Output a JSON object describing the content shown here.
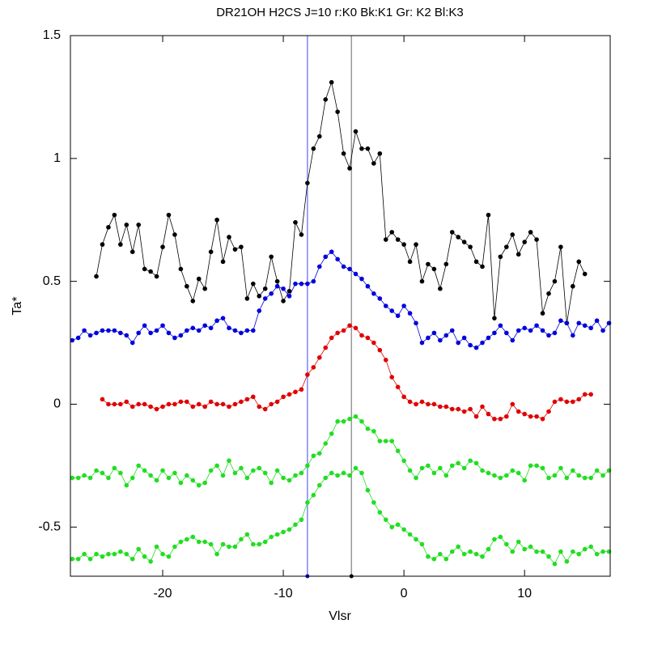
{
  "chart_data": {
    "type": "line",
    "title": "DR21OH H2CS J=10 r:K0 Bk:K1 Gr: K2 Bl:K3",
    "xlabel": "Vlsr",
    "ylabel": "Ta*",
    "xlim": [
      -27.65,
      17.1
    ],
    "ylim": [
      -0.7,
      1.5
    ],
    "xticks": [
      -20,
      -10,
      0,
      10
    ],
    "yticks": [
      -0.5,
      0,
      0.5,
      1,
      1.5
    ],
    "vlines": [
      {
        "x": -8,
        "color": "#8080ff"
      },
      {
        "x": -4.35,
        "color": "#999999"
      }
    ],
    "x": [
      -27.5,
      -27,
      -26.5,
      -26,
      -25.5,
      -25,
      -24.5,
      -24,
      -23.5,
      -23,
      -22.5,
      -22,
      -21.5,
      -21,
      -20.5,
      -20,
      -19.5,
      -19,
      -18.5,
      -18,
      -17.5,
      -17,
      -16.5,
      -16,
      -15.5,
      -15,
      -14.5,
      -14,
      -13.5,
      -13,
      -12.5,
      -12,
      -11.5,
      -11,
      -10.5,
      -10,
      -9.5,
      -9,
      -8.5,
      -8,
      -7.5,
      -7,
      -6.5,
      -6,
      -5.5,
      -5,
      -4.5,
      -4,
      -3.5,
      -3,
      -2.5,
      -2,
      -1.5,
      -1,
      -0.5,
      0,
      0.5,
      1,
      1.5,
      2,
      2.5,
      3,
      3.5,
      4,
      4.5,
      5,
      5.5,
      6,
      6.5,
      7,
      7.5,
      8,
      8.5,
      9,
      9.5,
      10,
      10.5,
      11,
      11.5,
      12,
      12.5,
      13,
      13.5,
      14,
      14.5,
      15,
      15.5,
      16,
      16.5,
      17
    ],
    "series": [
      {
        "color": "#000000",
        "values": [
          null,
          null,
          null,
          null,
          0.52,
          0.65,
          0.72,
          0.77,
          0.65,
          0.73,
          0.62,
          0.73,
          0.55,
          0.54,
          0.52,
          0.64,
          0.77,
          0.69,
          0.55,
          0.48,
          0.42,
          0.51,
          0.47,
          0.62,
          0.75,
          0.58,
          0.68,
          0.63,
          0.64,
          0.43,
          0.49,
          0.44,
          0.47,
          0.6,
          0.5,
          0.42,
          0.46,
          0.74,
          0.69,
          0.9,
          1.04,
          1.09,
          1.24,
          1.31,
          1.19,
          1.02,
          0.96,
          1.11,
          1.04,
          1.04,
          0.98,
          1.02,
          0.67,
          0.7,
          0.67,
          0.65,
          0.58,
          0.65,
          0.5,
          0.57,
          0.55,
          0.47,
          0.57,
          0.7,
          0.68,
          0.66,
          0.64,
          0.58,
          0.56,
          0.77,
          0.35,
          0.6,
          0.64,
          0.69,
          0.61,
          0.66,
          0.7,
          0.67,
          0.37,
          0.45,
          0.5,
          0.64,
          0.33,
          0.48,
          0.58,
          0.53,
          null,
          null,
          null,
          null
        ]
      },
      {
        "color": "#0000dd",
        "values": [
          0.26,
          0.27,
          0.3,
          0.28,
          0.29,
          0.3,
          0.3,
          0.3,
          0.29,
          0.28,
          0.25,
          0.29,
          0.32,
          0.29,
          0.3,
          0.32,
          0.29,
          0.27,
          0.28,
          0.3,
          0.31,
          0.3,
          0.32,
          0.31,
          0.34,
          0.35,
          0.31,
          0.3,
          0.29,
          0.3,
          0.3,
          0.38,
          0.43,
          0.45,
          0.48,
          0.47,
          0.44,
          0.49,
          0.49,
          0.49,
          0.5,
          0.56,
          0.6,
          0.62,
          0.59,
          0.56,
          0.55,
          0.53,
          0.51,
          0.48,
          0.45,
          0.43,
          0.4,
          0.38,
          0.36,
          0.4,
          0.37,
          0.33,
          0.25,
          0.27,
          0.29,
          0.26,
          0.28,
          0.3,
          0.25,
          0.27,
          0.24,
          0.23,
          0.25,
          0.27,
          0.29,
          0.32,
          0.29,
          0.26,
          0.3,
          0.31,
          0.3,
          0.32,
          0.3,
          0.28,
          0.29,
          0.34,
          0.33,
          0.28,
          0.33,
          0.32,
          0.31,
          0.34,
          0.3,
          0.33
        ]
      },
      {
        "color": "#e00000",
        "values": [
          null,
          null,
          null,
          null,
          null,
          0.02,
          0.0,
          0.0,
          0.0,
          0.01,
          -0.01,
          0.0,
          0.0,
          -0.01,
          -0.02,
          -0.01,
          0.0,
          0.0,
          0.01,
          0.01,
          -0.01,
          0.0,
          -0.01,
          0.01,
          0.0,
          0.0,
          -0.01,
          0.0,
          0.01,
          0.02,
          0.03,
          -0.01,
          -0.02,
          0.0,
          0.01,
          0.03,
          0.04,
          0.05,
          0.06,
          0.12,
          0.15,
          0.19,
          0.23,
          0.27,
          0.29,
          0.3,
          0.32,
          0.31,
          0.28,
          0.27,
          0.25,
          0.22,
          0.18,
          0.11,
          0.07,
          0.03,
          0.01,
          0.0,
          0.01,
          0.0,
          0.0,
          -0.01,
          -0.01,
          -0.02,
          -0.02,
          -0.03,
          -0.02,
          -0.05,
          -0.01,
          -0.04,
          -0.06,
          -0.06,
          -0.05,
          0.0,
          -0.03,
          -0.04,
          -0.05,
          -0.05,
          -0.06,
          -0.03,
          0.01,
          0.02,
          0.01,
          0.01,
          0.02,
          0.04,
          0.04,
          null,
          null,
          null
        ]
      },
      {
        "color": "#22dd22",
        "values": [
          -0.3,
          -0.3,
          -0.29,
          -0.3,
          -0.27,
          -0.28,
          -0.3,
          -0.26,
          -0.28,
          -0.33,
          -0.3,
          -0.25,
          -0.27,
          -0.29,
          -0.31,
          -0.27,
          -0.3,
          -0.28,
          -0.32,
          -0.29,
          -0.31,
          -0.33,
          -0.32,
          -0.27,
          -0.25,
          -0.29,
          -0.23,
          -0.28,
          -0.26,
          -0.3,
          -0.27,
          -0.26,
          -0.28,
          -0.32,
          -0.27,
          -0.3,
          -0.31,
          -0.29,
          -0.28,
          -0.25,
          -0.21,
          -0.2,
          -0.16,
          -0.12,
          -0.07,
          -0.07,
          -0.06,
          -0.05,
          -0.07,
          -0.1,
          -0.11,
          -0.15,
          -0.15,
          -0.15,
          -0.19,
          -0.23,
          -0.27,
          -0.3,
          -0.26,
          -0.25,
          -0.28,
          -0.26,
          -0.29,
          -0.25,
          -0.24,
          -0.26,
          -0.23,
          -0.24,
          -0.27,
          -0.28,
          -0.29,
          -0.3,
          -0.29,
          -0.27,
          -0.28,
          -0.31,
          -0.25,
          -0.25,
          -0.26,
          -0.3,
          -0.29,
          -0.26,
          -0.3,
          -0.27,
          -0.29,
          -0.3,
          -0.3,
          -0.27,
          -0.29,
          -0.27
        ]
      },
      {
        "color": "#22dd22",
        "values": [
          -0.63,
          -0.63,
          -0.61,
          -0.63,
          -0.61,
          -0.62,
          -0.61,
          -0.61,
          -0.6,
          -0.61,
          -0.63,
          -0.59,
          -0.62,
          -0.64,
          -0.58,
          -0.61,
          -0.62,
          -0.58,
          -0.56,
          -0.55,
          -0.54,
          -0.56,
          -0.56,
          -0.57,
          -0.61,
          -0.57,
          -0.58,
          -0.58,
          -0.55,
          -0.53,
          -0.57,
          -0.57,
          -0.56,
          -0.54,
          -0.53,
          -0.52,
          -0.51,
          -0.49,
          -0.47,
          -0.4,
          -0.37,
          -0.33,
          -0.3,
          -0.28,
          -0.29,
          -0.28,
          -0.29,
          -0.26,
          -0.28,
          -0.35,
          -0.4,
          -0.44,
          -0.47,
          -0.5,
          -0.49,
          -0.51,
          -0.53,
          -0.55,
          -0.57,
          -0.62,
          -0.63,
          -0.61,
          -0.63,
          -0.6,
          -0.58,
          -0.61,
          -0.6,
          -0.61,
          -0.62,
          -0.59,
          -0.55,
          -0.54,
          -0.57,
          -0.6,
          -0.56,
          -0.59,
          -0.58,
          -0.6,
          -0.6,
          -0.62,
          -0.65,
          -0.6,
          -0.64,
          -0.6,
          -0.61,
          -0.59,
          -0.58,
          -0.61,
          -0.6,
          -0.6
        ]
      }
    ]
  }
}
